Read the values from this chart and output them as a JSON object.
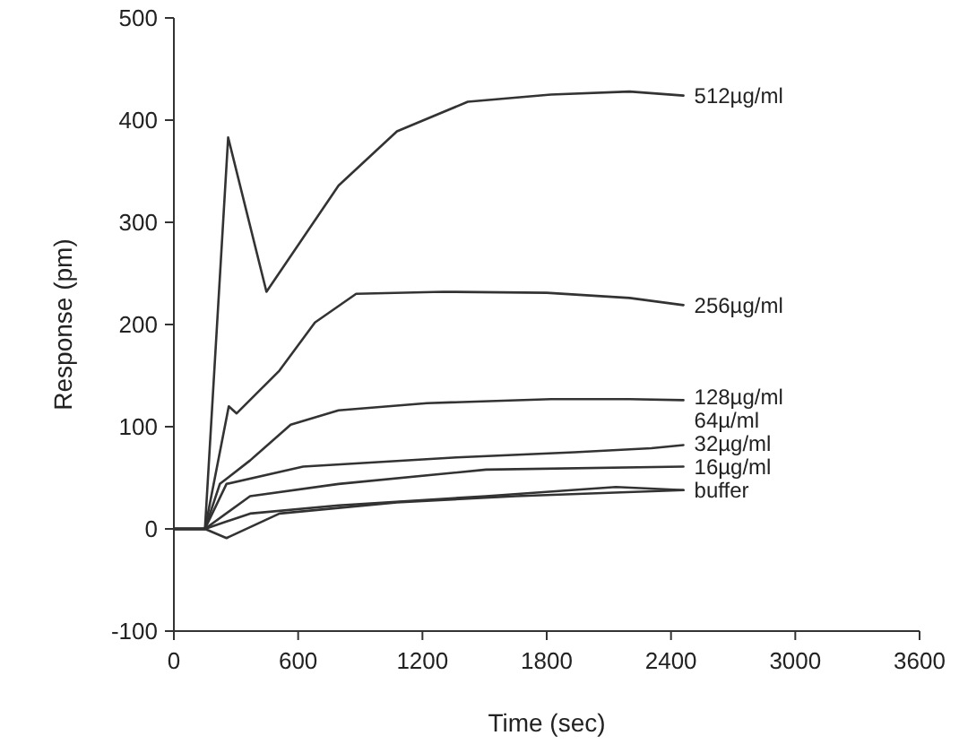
{
  "chart_data": {
    "type": "line",
    "xlabel": "Time (sec)",
    "ylabel": "Response (pm)",
    "xlim": [
      0,
      3600
    ],
    "xticks": [
      0,
      600,
      1200,
      1800,
      2400,
      3000,
      3600
    ],
    "ylim": [
      -100,
      500
    ],
    "yticks": [
      -100,
      0,
      100,
      200,
      300,
      400,
      500
    ],
    "grid": false,
    "marker": "none",
    "line_style": "solid",
    "series": [
      {
        "name": "512µg/ml",
        "color": "#333333",
        "x": [
          0,
          150,
          262,
          447,
          795,
          1077,
          1419,
          1820,
          2200,
          2460
        ],
        "values": [
          0,
          0,
          383,
          232,
          336,
          389,
          418,
          425,
          428,
          424
        ]
      },
      {
        "name": "256µg/ml",
        "color": "#333333",
        "x": [
          0,
          150,
          265,
          303,
          510,
          681,
          880,
          1300,
          1800,
          2200,
          2460
        ],
        "values": [
          0,
          0,
          120,
          113,
          155,
          202,
          230,
          232,
          231,
          226,
          219
        ]
      },
      {
        "name": "128µg/ml",
        "color": "#333333",
        "x": [
          0,
          150,
          222,
          368,
          564,
          795,
          1222,
          1820,
          2200,
          2460
        ],
        "values": [
          0,
          0,
          44,
          67,
          102,
          116,
          123,
          127,
          127,
          126
        ]
      },
      {
        "name": "64µ/ml",
        "color": "#333333",
        "x": [
          0,
          150,
          254,
          624,
          1365,
          1934,
          2305,
          2460
        ],
        "values": [
          0,
          0,
          44,
          61,
          70,
          75,
          79,
          82
        ]
      },
      {
        "name": "32µg/ml",
        "color": "#333333",
        "x": [
          0,
          150,
          368,
          795,
          1507,
          2460
        ],
        "values": [
          0,
          0,
          32,
          44,
          58,
          61
        ]
      },
      {
        "name": "16µg/ml",
        "color": "#333333",
        "x": [
          0,
          150,
          368,
          795,
          1507,
          2134,
          2460
        ],
        "values": [
          0,
          0,
          15,
          23,
          32,
          41,
          38
        ]
      },
      {
        "name": "buffer",
        "color": "#333333",
        "x": [
          0,
          150,
          254,
          510,
          1077,
          1650,
          2460
        ],
        "values": [
          0,
          0,
          -9,
          15,
          26,
          32,
          38
        ]
      }
    ]
  }
}
